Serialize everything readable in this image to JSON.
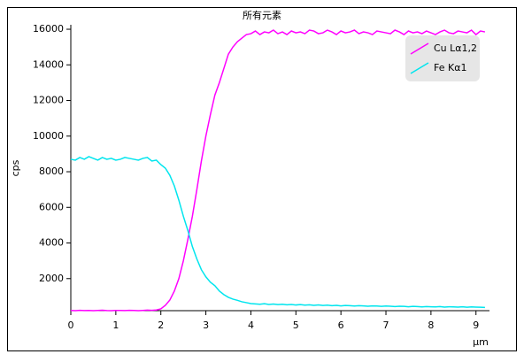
{
  "chart_data": {
    "type": "line",
    "title": "所有元素",
    "x_label": "µm",
    "y_label": "cps",
    "x": [
      0,
      0.1,
      0.2,
      0.3,
      0.4,
      0.5,
      0.6,
      0.7,
      0.8,
      0.9,
      1,
      1.1,
      1.2,
      1.3,
      1.4,
      1.5,
      1.6,
      1.7,
      1.8,
      1.9,
      2,
      2.1,
      2.2,
      2.3,
      2.4,
      2.5,
      2.6,
      2.7,
      2.8,
      2.9,
      3,
      3.1,
      3.2,
      3.3,
      3.4,
      3.5,
      3.6,
      3.7,
      3.8,
      3.9,
      4,
      4.1,
      4.2,
      4.3,
      4.4,
      4.5,
      4.6,
      4.7,
      4.8,
      4.9,
      5,
      5.1,
      5.2,
      5.3,
      5.4,
      5.5,
      5.6,
      5.7,
      5.8,
      5.9,
      6,
      6.1,
      6.2,
      6.3,
      6.4,
      6.5,
      6.6,
      6.7,
      6.8,
      6.9,
      7,
      7.1,
      7.2,
      7.3,
      7.4,
      7.5,
      7.6,
      7.7,
      7.8,
      7.9,
      8,
      8.1,
      8.2,
      8.3,
      8.4,
      8.5,
      8.6,
      8.7,
      8.8,
      8.9,
      9,
      9.1,
      9.2
    ],
    "series": [
      {
        "name": "Cu Lα1,2",
        "color": "#ff00ff",
        "values": [
          210,
          200,
          220,
          205,
          215,
          200,
          210,
          225,
          205,
          200,
          215,
          210,
          205,
          220,
          210,
          200,
          215,
          230,
          220,
          240,
          300,
          500,
          800,
          1300,
          2000,
          3000,
          4200,
          5500,
          7000,
          8600,
          10000,
          11200,
          12300,
          13000,
          13800,
          14600,
          15000,
          15300,
          15500,
          15700,
          15750,
          15900,
          15700,
          15850,
          15800,
          15950,
          15750,
          15850,
          15700,
          15900,
          15800,
          15850,
          15750,
          15950,
          15900,
          15750,
          15800,
          15950,
          15850,
          15700,
          15900,
          15800,
          15850,
          15950,
          15750,
          15850,
          15800,
          15700,
          15900,
          15850,
          15800,
          15750,
          15950,
          15850,
          15700,
          15900,
          15800,
          15850,
          15750,
          15900,
          15800,
          15700,
          15850,
          15950,
          15800,
          15750,
          15900,
          15850,
          15800,
          15950,
          15700,
          15900,
          15850
        ]
      },
      {
        "name": "Fe Kα1",
        "color": "#00e5ee",
        "values": [
          8700,
          8650,
          8800,
          8700,
          8850,
          8750,
          8650,
          8800,
          8700,
          8750,
          8650,
          8700,
          8800,
          8750,
          8700,
          8650,
          8750,
          8800,
          8600,
          8650,
          8400,
          8200,
          7800,
          7200,
          6400,
          5500,
          4700,
          3800,
          3100,
          2500,
          2100,
          1800,
          1600,
          1300,
          1100,
          950,
          850,
          780,
          700,
          650,
          600,
          580,
          560,
          590,
          550,
          570,
          540,
          560,
          530,
          550,
          520,
          540,
          510,
          530,
          500,
          520,
          490,
          510,
          480,
          500,
          470,
          490,
          480,
          460,
          480,
          470,
          450,
          470,
          460,
          440,
          460,
          450,
          430,
          450,
          440,
          420,
          440,
          430,
          410,
          430,
          420,
          410,
          430,
          400,
          420,
          410,
          400,
          420,
          390,
          410,
          400,
          390,
          380
        ]
      }
    ],
    "xlim": [
      0,
      9.3
    ],
    "xticks": [
      0,
      1,
      2,
      3,
      4,
      5,
      6,
      7,
      8,
      9
    ],
    "ylim": [
      200,
      16250
    ],
    "yticks": [
      2000,
      4000,
      6000,
      8000,
      10000,
      12000,
      14000,
      16000
    ],
    "legend": "top-right"
  }
}
